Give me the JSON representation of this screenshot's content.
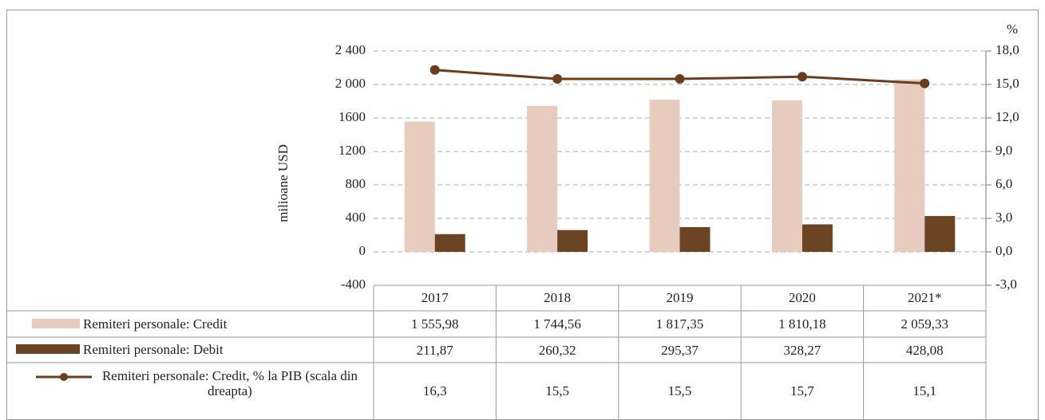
{
  "chart_data": {
    "type": "bar-line",
    "ylabel": "milioane USD",
    "y2label": "%",
    "categories": [
      "2017",
      "2018",
      "2019",
      "2020",
      "2021*"
    ],
    "series": [
      {
        "name": "Remiteri personale: Credit",
        "color": "#e8cbbf",
        "values": [
          1555.98,
          1744.56,
          1817.35,
          1810.18,
          2059.33
        ],
        "value_labels": [
          "1 555,98",
          "1 744,56",
          "1 817,35",
          "1 810,18",
          "2 059,33"
        ]
      },
      {
        "name": "Remiteri personale: Debit",
        "color": "#6b4423",
        "values": [
          211.87,
          260.32,
          295.37,
          328.27,
          428.08
        ],
        "value_labels": [
          "211,87",
          "260,32",
          "295,37",
          "328,27",
          "428,08"
        ]
      },
      {
        "name": "Remiteri personale: Credit, % la PIB (scala din dreapta)",
        "color": "#6b3d1f",
        "axis": "y2",
        "values": [
          16.3,
          15.5,
          15.5,
          15.7,
          15.1
        ],
        "value_labels": [
          "16,3",
          "15,5",
          "15,5",
          "15,7",
          "15,1"
        ]
      }
    ],
    "ylim": [
      -400,
      2400
    ],
    "yticks": [
      -400,
      0,
      400,
      800,
      1200,
      1600,
      {
        "value": 2000,
        "label": "2 000"
      },
      {
        "value": 2400,
        "label": "2 400"
      }
    ],
    "y2lim": [
      -3,
      18
    ],
    "y2ticks": [
      {
        "value": -3,
        "label": "-3,0"
      },
      {
        "value": 0,
        "label": "0,0"
      },
      {
        "value": 3,
        "label": "3,0"
      },
      {
        "value": 6,
        "label": "6,0"
      },
      {
        "value": 9,
        "label": "9,0"
      },
      {
        "value": 12,
        "label": "12,0"
      },
      {
        "value": 15,
        "label": "15,0"
      },
      {
        "value": 18,
        "label": "18,0"
      }
    ],
    "grid": true
  }
}
